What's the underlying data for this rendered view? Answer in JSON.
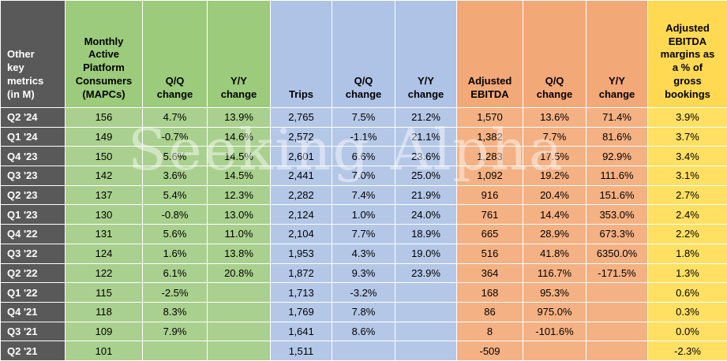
{
  "watermark": "Seeking Alpha",
  "colors": {
    "label_column_bg": "#595959",
    "label_text": "#ffffff",
    "green_group": "#A9D08E",
    "blue_group": "#B4C7E7",
    "orange_group": "#F4B183",
    "yellow_group": "#FFE063",
    "gridline": "#ffffff",
    "data_text": "#000000"
  },
  "chart_data": {
    "type": "table",
    "title": "Other key metrics (in M)",
    "headers": [
      {
        "label": "Other\nkey\nmetrics\n(in M)",
        "group": "dark"
      },
      {
        "label": "Monthly\nActive\nPlatform\nConsumers\n(MAPCs)",
        "group": "green"
      },
      {
        "label": "Q/Q\nchange",
        "group": "green"
      },
      {
        "label": "Y/Y\nchange",
        "group": "green"
      },
      {
        "label": "Trips",
        "group": "blue"
      },
      {
        "label": "Q/Q\nchange",
        "group": "blue"
      },
      {
        "label": "Y/Y\nchange",
        "group": "blue"
      },
      {
        "label": "Adjusted\nEBITDA",
        "group": "orange"
      },
      {
        "label": "Q/Q\nchange",
        "group": "orange"
      },
      {
        "label": "Y/Y\nchange",
        "group": "orange"
      },
      {
        "label": "Adjusted\nEBITDA\nmargins as\na % of\ngross\nbookings",
        "group": "yellow"
      }
    ],
    "column_groups": [
      "green",
      "green",
      "green",
      "blue",
      "blue",
      "blue",
      "orange",
      "orange",
      "orange",
      "yellow"
    ],
    "rows": [
      {
        "label": "Q2 '24",
        "values": [
          "156",
          "4.7%",
          "13.9%",
          "2,765",
          "7.5%",
          "21.2%",
          "1,570",
          "13.6%",
          "71.4%",
          "3.9%"
        ]
      },
      {
        "label": "Q1 '24",
        "values": [
          "149",
          "-0.7%",
          "14.6%",
          "2,572",
          "-1.1%",
          "21.1%",
          "1,382",
          "7.7%",
          "81.6%",
          "3.7%"
        ]
      },
      {
        "label": "Q4 '23",
        "values": [
          "150",
          "5.6%",
          "14.5%",
          "2,601",
          "6.6%",
          "23.6%",
          "1,283",
          "17.5%",
          "92.9%",
          "3.4%"
        ]
      },
      {
        "label": "Q3 '23",
        "values": [
          "142",
          "3.6%",
          "14.5%",
          "2,441",
          "7.0%",
          "25.0%",
          "1,092",
          "19.2%",
          "111.6%",
          "3.1%"
        ]
      },
      {
        "label": "Q2 '23",
        "values": [
          "137",
          "5.4%",
          "12.3%",
          "2,282",
          "7.4%",
          "21.9%",
          "916",
          "20.4%",
          "151.6%",
          "2.7%"
        ]
      },
      {
        "label": "Q1 '23",
        "values": [
          "130",
          "-0.8%",
          "13.0%",
          "2,124",
          "1.0%",
          "24.0%",
          "761",
          "14.4%",
          "353.0%",
          "2.4%"
        ]
      },
      {
        "label": "Q4 '22",
        "values": [
          "131",
          "5.6%",
          "11.0%",
          "2,104",
          "7.7%",
          "18.9%",
          "665",
          "28.9%",
          "673.3%",
          "2.2%"
        ]
      },
      {
        "label": "Q3 '22",
        "values": [
          "124",
          "1.6%",
          "13.8%",
          "1,953",
          "4.3%",
          "19.0%",
          "516",
          "41.8%",
          "6350.0%",
          "1.8%"
        ]
      },
      {
        "label": "Q2 '22",
        "values": [
          "122",
          "6.1%",
          "20.8%",
          "1,872",
          "9.3%",
          "23.9%",
          "364",
          "116.7%",
          "-171.5%",
          "1.3%"
        ]
      },
      {
        "label": "Q1 '22",
        "values": [
          "115",
          "-2.5%",
          "",
          "1,713",
          "-3.2%",
          "",
          "168",
          "95.3%",
          "",
          "0.6%"
        ]
      },
      {
        "label": "Q4 '21",
        "values": [
          "118",
          "8.3%",
          "",
          "1,769",
          "7.8%",
          "",
          "86",
          "975.0%",
          "",
          "0.3%"
        ]
      },
      {
        "label": "Q3 '21",
        "values": [
          "109",
          "7.9%",
          "",
          "1,641",
          "8.6%",
          "",
          "8",
          "-101.6%",
          "",
          "0.0%"
        ]
      },
      {
        "label": "Q2 '21",
        "values": [
          "101",
          "",
          "",
          "1,511",
          "",
          "",
          "-509",
          "",
          "",
          "-2.3%"
        ]
      }
    ]
  }
}
